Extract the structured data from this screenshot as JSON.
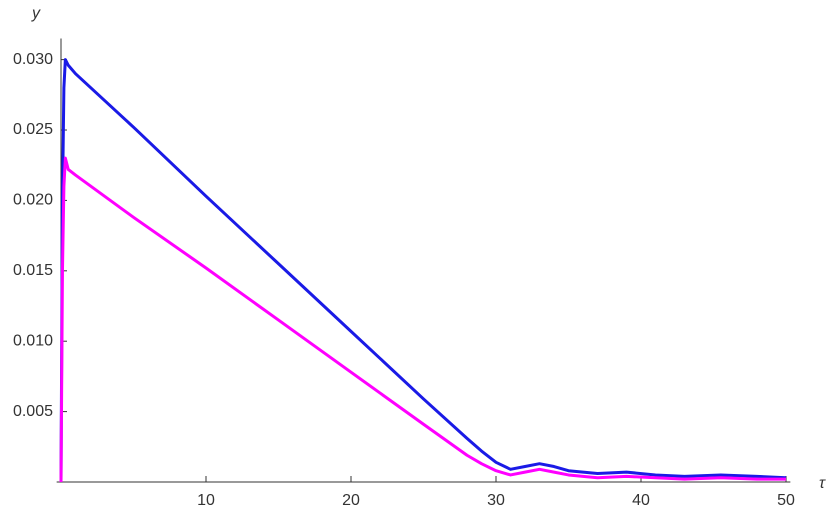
{
  "chart_data": {
    "type": "line",
    "x_label": "τ",
    "y_label": "y",
    "x": [
      0,
      0.1,
      0.2,
      0.3,
      0.5,
      1,
      5,
      10,
      15,
      20,
      25,
      28,
      29,
      30,
      31,
      32,
      33,
      34,
      35,
      37,
      39,
      41,
      43,
      45.5,
      48,
      50
    ],
    "series": [
      {
        "color": "#1a1ae6",
        "values": [
          0,
          0.02,
          0.028,
          0.03,
          0.0296,
          0.029,
          0.0252,
          0.0203,
          0.0155,
          0.0107,
          0.0059,
          0.0031,
          0.0022,
          0.0014,
          0.0009,
          0.0011,
          0.0013,
          0.0011,
          0.0008,
          0.0006,
          0.0007,
          0.0005,
          0.0004,
          0.0005,
          0.0004,
          0.0003
        ]
      },
      {
        "color": "#ff00ff",
        "values": [
          0,
          0.015,
          0.021,
          0.023,
          0.0222,
          0.0218,
          0.0188,
          0.0152,
          0.0115,
          0.0078,
          0.0041,
          0.0019,
          0.0013,
          0.0008,
          0.0005,
          0.0007,
          0.0009,
          0.0007,
          0.0005,
          0.0003,
          0.0004,
          0.0003,
          0.0002,
          0.0003,
          0.0002,
          0.0002
        ]
      }
    ],
    "xlim": [
      -0.3,
      50.3
    ],
    "ylim": [
      0,
      0.0315
    ],
    "xticks": [
      10,
      20,
      30,
      40,
      50
    ],
    "yticks": [
      0.005,
      {
        "value": 0.01,
        "label": "0.010"
      },
      0.015,
      {
        "value": 0.02,
        "label": "0.020"
      },
      0.025,
      {
        "value": 0.03,
        "label": "0.030"
      }
    ]
  }
}
